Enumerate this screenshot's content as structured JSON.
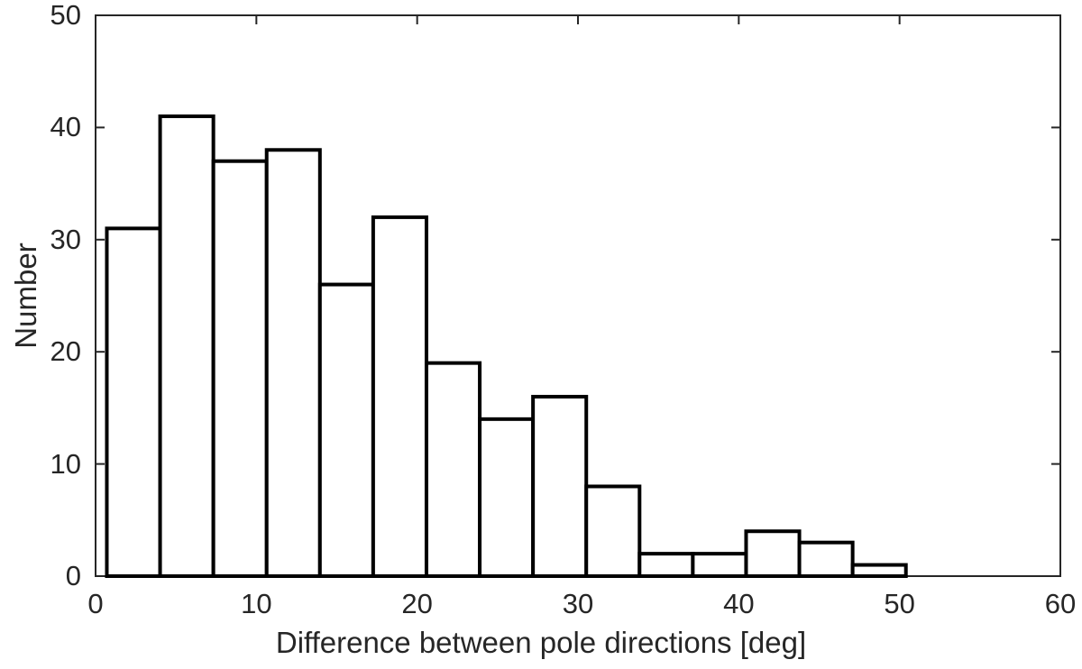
{
  "figure": {
    "background": "#ffffff",
    "axis_color": "#262626",
    "bar_fill": "#ffffff",
    "bar_edge_color": "#000000"
  },
  "chart_data": {
    "type": "bar",
    "subtype": "histogram",
    "title": "",
    "xlabel": "Difference between pole directions [deg]",
    "ylabel": "Number",
    "xlim": [
      0,
      60
    ],
    "ylim": [
      0,
      50
    ],
    "x_ticks": [
      0,
      10,
      20,
      30,
      40,
      50,
      60
    ],
    "y_ticks": [
      0,
      10,
      20,
      30,
      40,
      50
    ],
    "bin_start": 0.7,
    "bin_width": 3.313,
    "values": [
      31,
      41,
      37,
      38,
      26,
      32,
      19,
      14,
      16,
      8,
      2,
      2,
      4,
      3,
      1
    ],
    "grid": false,
    "legend": false
  }
}
